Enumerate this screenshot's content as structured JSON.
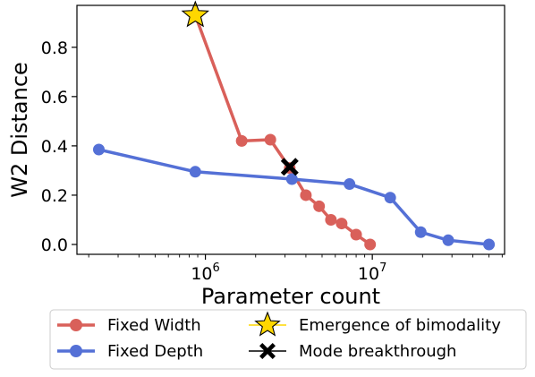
{
  "chart_data": {
    "type": "line",
    "xlabel": "Parameter count",
    "ylabel": "W2 Distance",
    "xscale": "log",
    "xlim": [
      170000,
      62000000
    ],
    "ylim": [
      -0.04,
      0.97
    ],
    "x_ticks": [
      {
        "value": 1000000,
        "base": "10",
        "exp": "6"
      },
      {
        "value": 10000000,
        "base": "10",
        "exp": "7"
      }
    ],
    "y_ticks": [
      {
        "value": 0.0,
        "label": "0.0"
      },
      {
        "value": 0.2,
        "label": "0.2"
      },
      {
        "value": 0.4,
        "label": "0.4"
      },
      {
        "value": 0.6,
        "label": "0.6"
      },
      {
        "value": 0.8,
        "label": "0.8"
      }
    ],
    "grid": false,
    "legend_position": "bottom-outside",
    "series": [
      {
        "name": "Fixed Width",
        "color": "#d9605a",
        "x": [
          870000,
          1650000,
          2450000,
          3200000,
          4000000,
          4800000,
          5650000,
          6550000,
          8000000,
          9700000
        ],
        "y": [
          0.93,
          0.42,
          0.425,
          0.31,
          0.2,
          0.155,
          0.1,
          0.085,
          0.04,
          0.0
        ]
      },
      {
        "name": "Fixed Depth",
        "color": "#5470d6",
        "x": [
          230000,
          870000,
          3300000,
          7300000,
          12800000,
          19500000,
          28500000,
          50000000
        ],
        "y": [
          0.385,
          0.295,
          0.265,
          0.245,
          0.19,
          0.05,
          0.017,
          0.0
        ]
      }
    ],
    "annotations": [
      {
        "name": "Emergence of bimodality",
        "marker": "star",
        "color": "#ffd700",
        "x": 870000,
        "y": 0.93
      },
      {
        "name": "Mode breakthrough",
        "marker": "X",
        "color": "#000000",
        "x": 3200000,
        "y": 0.315
      }
    ]
  }
}
